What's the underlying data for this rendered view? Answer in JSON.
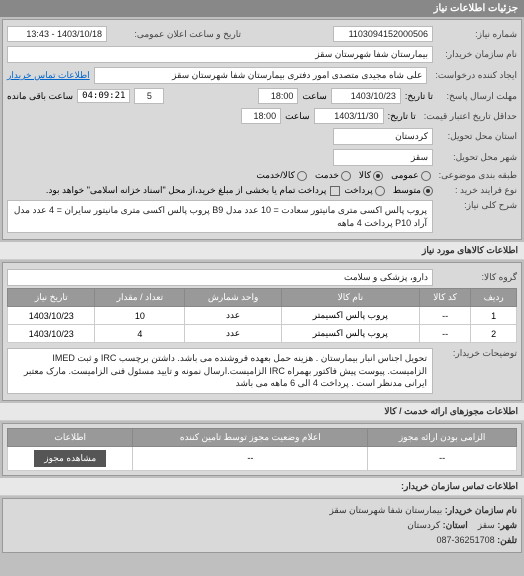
{
  "header": {
    "title": "جزئیات اطلاعات نیاز"
  },
  "info": {
    "request_no_label": "شماره نیاز:",
    "request_no": "1103094152000506",
    "public_datetime_label": "تاریخ و ساعت اعلان عمومی:",
    "public_datetime": "1403/10/18 - 13:43",
    "buyer_org_label": "نام سازمان خریدار:",
    "buyer_org": "بیمارستان شفا شهرستان سقز",
    "requester_label": "ایجاد کننده درخواست:",
    "requester": "علی شاه مجیدی متصدی امور دفتری بیمارستان شفا شهرستان سقز",
    "contact_link": "اطلاعات تماس خریدار",
    "reply_deadline_label": "مهلت ارسال پاسخ:",
    "until_label": "تا تاریخ:",
    "deadline_date": "1403/10/23",
    "time_label": "ساعت",
    "deadline_time": "18:00",
    "remaining_label": "ساعت باقی مانده",
    "remaining_days": "5",
    "remaining_time": "04:09:21",
    "credit_label": "حداقل تاریخ اعتبار قیمت:",
    "credit_until_label": "تا تاریخ:",
    "credit_date": "1403/11/30",
    "credit_time": "18:00",
    "delivery_province_label": "استان محل تحویل:",
    "delivery_province": "کردستان",
    "delivery_city_label": "شهر محل تحویل:",
    "delivery_city": "سقز",
    "packaging_label": "طبقه بندی موضوعی:",
    "pkg_opts": [
      "عمومی",
      "کالا",
      "خدمت",
      "کالا/خدمت"
    ],
    "pkg_selected": 1,
    "buy_type_label": "نوع فرایند خرید :",
    "buy_opts": [
      "متوسط",
      "پرداخت"
    ],
    "buy_selected": 0,
    "buy_note": "پرداخت تمام یا بخشی از مبلغ خرید،از محل \"اسناد خزانه اسلامی\" خواهد بود.",
    "desc_label": "شرح کلی نیاز:",
    "desc": "پروب پالس اکسی متری مانیتور سعادت = 10 عدد مدل B9 پروب پالس اکسی متری مانیتور سایران = 4 عدد مدل آراد P10 پرداخت 4 ماهه"
  },
  "goods": {
    "title": "اطلاعات کالاهای مورد نیاز",
    "group_label": "گروه کالا:",
    "group": "دارو، پزشکی و سلامت",
    "columns": [
      "ردیف",
      "کد کالا",
      "نام کالا",
      "واحد شمارش",
      "تعداد / مقدار",
      "تاریخ نیاز"
    ],
    "rows": [
      [
        "1",
        "--",
        "پروب پالس اکسیمتر",
        "عدد",
        "10",
        "1403/10/23"
      ],
      [
        "2",
        "--",
        "پروب پالس اکسیمتر",
        "عدد",
        "4",
        "1403/10/23"
      ]
    ],
    "buyer_notes_label": "توضیحات خریدار:",
    "buyer_notes": "تحویل اجناس انبار بیمارستان . هزینه حمل بعهده فروشنده می باشد. داشتن برچسب IRC و ثبت IMED الزامیست. پیوست پیش فاکتور بهمراه IRC الزامیست.ارسال نمونه و تایید مسئول فنی الزامیست. مارک معتبر ایرانی مدنظر است . پرداخت 4 الی 6 ماهه می باشد"
  },
  "permits": {
    "title": "اطلاعات مجوزهای ارائه خدمت / کالا",
    "columns": [
      "الزامی بودن ارائه مجوز",
      "اعلام وضعیت مجوز توسط تامین کننده",
      "اطلاعات"
    ],
    "row": [
      "--",
      "--"
    ],
    "btn": "مشاهده مجوز"
  },
  "buyer_contact": {
    "title": "اطلاعات تماس سازمان خریدار:",
    "org_label": "نام سازمان خریدار:",
    "org": "بیمارستان شفا شهرستان سقز",
    "city_label": "شهر:",
    "city": "سقز",
    "province_label": "استان:",
    "province": "کردستان",
    "phone_label": "تلفن:",
    "phone": "36251708-087"
  }
}
